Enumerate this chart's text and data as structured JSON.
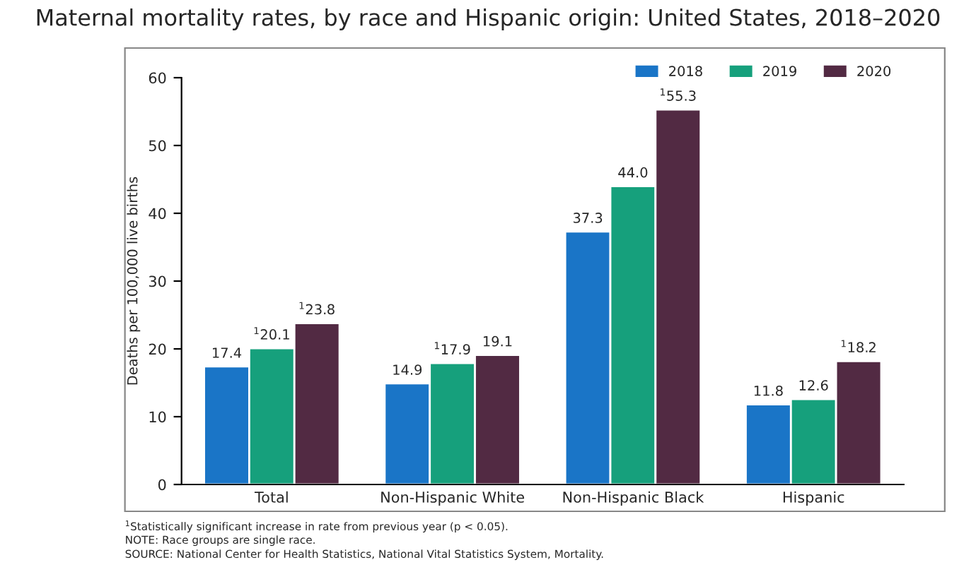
{
  "chart_data": {
    "type": "bar",
    "title": "Maternal mortality rates, by race and Hispanic origin: United States, 2018–2020",
    "ylabel": "Deaths per 100,000 live births",
    "categories": [
      "Total",
      "Non-Hispanic White",
      "Non-Hispanic Black",
      "Hispanic"
    ],
    "series": [
      {
        "name": "2018",
        "color": "#1a75c7",
        "values": [
          17.4,
          14.9,
          37.3,
          11.8
        ],
        "value_labels": [
          "17.4",
          "14.9",
          "37.3",
          "11.8"
        ]
      },
      {
        "name": "2019",
        "color": "#16a07c",
        "values": [
          20.1,
          17.9,
          44.0,
          12.6
        ],
        "value_labels": [
          "$^{1}$20.1",
          "$^{1}$17.9",
          "44.0",
          "12.6"
        ]
      },
      {
        "name": "2020",
        "color": "#522a43",
        "values": [
          23.8,
          19.1,
          55.3,
          18.2
        ],
        "value_labels": [
          "$^{1}$23.8",
          "19.1",
          "$^{1}$55.3",
          "$^{1}$18.2"
        ]
      }
    ],
    "ylim": [
      0,
      60
    ],
    "yticks": [
      0,
      10,
      20,
      30,
      40,
      50,
      60
    ],
    "grid": false,
    "legend": "top right",
    "annotations": [
      "$^{1}$Statistically significant increase in rate from previous year (p < 0.05).",
      "NOTE: Race groups are single race.",
      "SOURCE: National Center for Health Statistics, National Vital Statistics System, Mortality."
    ]
  }
}
